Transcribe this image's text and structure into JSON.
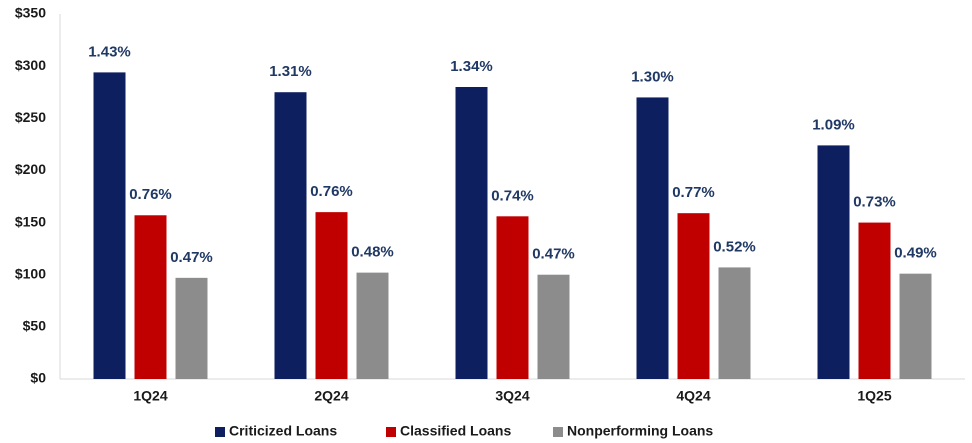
{
  "chart_data": {
    "type": "bar",
    "categories": [
      "1Q24",
      "2Q24",
      "3Q24",
      "4Q24",
      "1Q25"
    ],
    "series": [
      {
        "name": "Criticized Loans",
        "color": "#0e1f5f",
        "values": [
          294,
          275,
          280,
          270,
          224
        ],
        "labels": [
          "1.43%",
          "1.31%",
          "1.34%",
          "1.30%",
          "1.09%"
        ]
      },
      {
        "name": "Classified Loans",
        "color": "#c00000",
        "values": [
          157,
          160,
          156,
          159,
          150
        ],
        "labels": [
          "0.76%",
          "0.76%",
          "0.74%",
          "0.77%",
          "0.73%"
        ]
      },
      {
        "name": "Nonperforming Loans",
        "color": "#8c8c8c",
        "values": [
          97,
          102,
          100,
          107,
          101
        ],
        "labels": [
          "0.47%",
          "0.48%",
          "0.47%",
          "0.52%",
          "0.49%"
        ]
      }
    ],
    "ylim": [
      0,
      350
    ],
    "yticks": [
      {
        "value": 0,
        "label": "$0"
      },
      {
        "value": 50,
        "label": "$50"
      },
      {
        "value": 100,
        "label": "$100"
      },
      {
        "value": 150,
        "label": "$150"
      },
      {
        "value": 200,
        "label": "$200"
      },
      {
        "value": 250,
        "label": "$250"
      },
      {
        "value": 300,
        "label": "$300"
      },
      {
        "value": 350,
        "label": "$350"
      }
    ],
    "grid": false,
    "legend": "bottom"
  }
}
